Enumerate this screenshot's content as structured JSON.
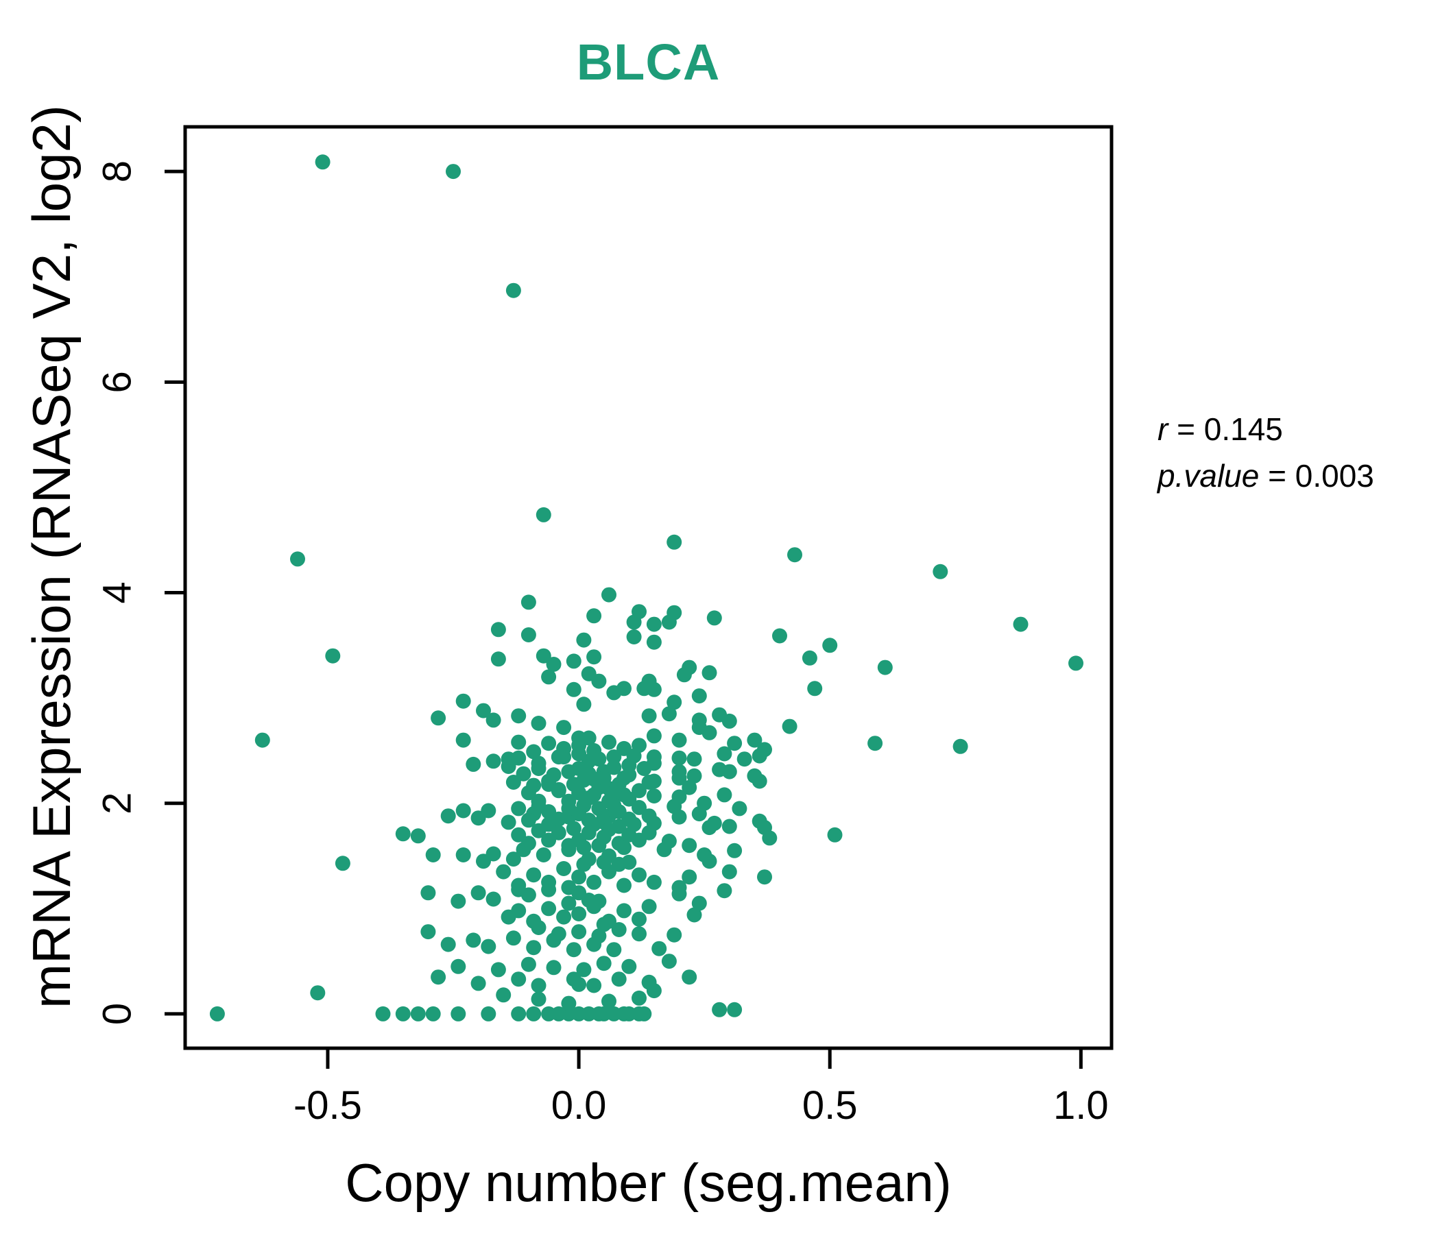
{
  "title": "BLCA",
  "title_color": "#1E9C78",
  "axes": {
    "x_label": "Copy number (seg.mean)",
    "y_label": "mRNA Expression (RNASeq V2, log2)",
    "x_ticks": [
      {
        "value": -0.5,
        "label": "-0.5"
      },
      {
        "value": 0.0,
        "label": "0.0"
      },
      {
        "value": 0.5,
        "label": "0.5"
      },
      {
        "value": 1.0,
        "label": "1.0"
      }
    ],
    "y_ticks": [
      {
        "value": 0,
        "label": "0"
      },
      {
        "value": 2,
        "label": "2"
      },
      {
        "value": 4,
        "label": "4"
      },
      {
        "value": 6,
        "label": "6"
      },
      {
        "value": 8,
        "label": "8"
      }
    ]
  },
  "annotation": {
    "r_var": "r",
    "r_eq": " = 0.145",
    "r_text": "r = 0.145",
    "p_var": "p.value",
    "p_eq": " = 0.003",
    "p_text": "p.value = 0.003"
  },
  "chart_data": {
    "type": "scatter",
    "title": "BLCA",
    "xlabel": "Copy number (seg.mean)",
    "ylabel": "mRNA Expression (RNASeq V2, log2)",
    "xlim": [
      -0.784,
      1.061
    ],
    "ylim": [
      -0.326,
      8.424
    ],
    "x_tick_values": [
      -0.5,
      0.0,
      0.5,
      1.0
    ],
    "y_tick_values": [
      0,
      2,
      4,
      6,
      8
    ],
    "grid": false,
    "legend": "none",
    "point_color": "#1E9C78",
    "point_radius_px": 11,
    "stats": {
      "r": 0.145,
      "p_value": 0.003
    },
    "points": [
      [
        -0.51,
        8.09
      ],
      [
        -0.25,
        8.0
      ],
      [
        -0.13,
        6.87
      ],
      [
        -0.07,
        4.74
      ],
      [
        -0.56,
        4.32
      ],
      [
        0.19,
        4.48
      ],
      [
        0.43,
        4.36
      ],
      [
        0.72,
        4.2
      ],
      [
        0.88,
        3.7
      ],
      [
        0.99,
        3.33
      ],
      [
        0.61,
        3.29
      ],
      [
        0.59,
        2.57
      ],
      [
        0.76,
        2.54
      ],
      [
        0.51,
        1.7
      ],
      [
        -0.63,
        2.6
      ],
      [
        -0.49,
        3.4
      ],
      [
        -0.47,
        1.43
      ],
      [
        -0.52,
        0.2
      ],
      [
        -0.72,
        0.0
      ],
      [
        0.06,
        3.98
      ],
      [
        -0.1,
        3.91
      ],
      [
        0.03,
        3.78
      ],
      [
        0.12,
        3.82
      ],
      [
        -0.16,
        3.65
      ],
      [
        -0.1,
        3.6
      ],
      [
        0.01,
        3.55
      ],
      [
        0.11,
        3.58
      ],
      [
        0.11,
        3.72
      ],
      [
        -0.07,
        3.4
      ],
      [
        0.03,
        3.39
      ],
      [
        -0.16,
        3.37
      ],
      [
        -0.05,
        3.32
      ],
      [
        -0.01,
        3.35
      ],
      [
        -0.06,
        3.2
      ],
      [
        0.02,
        3.23
      ],
      [
        0.04,
        3.16
      ],
      [
        0.07,
        3.05
      ],
      [
        -0.01,
        3.08
      ],
      [
        0.01,
        2.94
      ],
      [
        0.09,
        3.09
      ],
      [
        0.13,
        3.09
      ],
      [
        -0.23,
        2.97
      ],
      [
        -0.19,
        2.88
      ],
      [
        -0.17,
        2.79
      ],
      [
        -0.28,
        2.81
      ],
      [
        -0.12,
        2.83
      ],
      [
        -0.08,
        2.76
      ],
      [
        -0.03,
        2.72
      ],
      [
        0.0,
        2.62
      ],
      [
        -0.23,
        2.6
      ],
      [
        0.14,
        3.16
      ],
      [
        0.14,
        2.83
      ],
      [
        0.19,
        3.81
      ],
      [
        0.18,
        3.72
      ],
      [
        0.15,
        3.7
      ],
      [
        0.27,
        3.76
      ],
      [
        0.4,
        3.59
      ],
      [
        0.5,
        3.5
      ],
      [
        0.15,
        3.53
      ],
      [
        0.46,
        3.38
      ],
      [
        0.22,
        3.29
      ],
      [
        0.26,
        3.24
      ],
      [
        0.21,
        3.22
      ],
      [
        0.47,
        3.09
      ],
      [
        0.15,
        3.08
      ],
      [
        0.19,
        2.96
      ],
      [
        0.24,
        3.02
      ],
      [
        0.28,
        2.84
      ],
      [
        0.24,
        2.79
      ],
      [
        0.26,
        2.67
      ],
      [
        0.15,
        2.64
      ],
      [
        0.31,
        2.57
      ],
      [
        0.42,
        2.73
      ],
      [
        0.37,
        2.51
      ],
      [
        -0.21,
        2.37
      ],
      [
        -0.17,
        2.4
      ],
      [
        -0.14,
        2.42
      ],
      [
        -0.12,
        2.43
      ],
      [
        -0.08,
        2.38
      ],
      [
        -0.04,
        2.44
      ],
      [
        0.0,
        2.47
      ],
      [
        0.02,
        2.4
      ],
      [
        0.07,
        2.44
      ],
      [
        0.1,
        2.36
      ],
      [
        -0.09,
        2.17
      ],
      [
        -0.06,
        2.21
      ],
      [
        -0.04,
        2.13
      ],
      [
        0.03,
        2.23
      ],
      [
        0.06,
        2.14
      ],
      [
        0.09,
        2.08
      ],
      [
        -0.26,
        1.88
      ],
      [
        -0.23,
        1.93
      ],
      [
        -0.2,
        1.86
      ],
      [
        -0.18,
        1.93
      ],
      [
        -0.09,
        1.9
      ],
      [
        -0.06,
        1.8
      ],
      [
        -0.02,
        1.87
      ],
      [
        0.05,
        1.87
      ],
      [
        0.08,
        1.78
      ],
      [
        -0.35,
        1.71
      ],
      [
        -0.32,
        1.69
      ],
      [
        -0.29,
        1.51
      ],
      [
        -0.23,
        1.51
      ],
      [
        -0.19,
        1.45
      ],
      [
        -0.17,
        1.52
      ],
      [
        -0.13,
        1.47
      ],
      [
        -0.11,
        1.56
      ],
      [
        -0.07,
        1.51
      ],
      [
        -0.02,
        1.56
      ],
      [
        0.02,
        1.47
      ],
      [
        0.06,
        1.5
      ],
      [
        0.1,
        1.44
      ],
      [
        -0.3,
        1.15
      ],
      [
        -0.24,
        1.07
      ],
      [
        -0.2,
        1.15
      ],
      [
        -0.17,
        1.09
      ],
      [
        -0.12,
        1.18
      ],
      [
        -0.1,
        1.13
      ],
      [
        -0.06,
        1.18
      ],
      [
        0.0,
        1.15
      ],
      [
        0.04,
        1.07
      ],
      [
        -0.3,
        0.78
      ],
      [
        -0.26,
        0.66
      ],
      [
        -0.21,
        0.7
      ],
      [
        -0.18,
        0.64
      ],
      [
        -0.13,
        0.72
      ],
      [
        -0.09,
        0.63
      ],
      [
        -0.05,
        0.7
      ],
      [
        -0.01,
        0.61
      ],
      [
        0.03,
        0.66
      ],
      [
        0.07,
        0.61
      ],
      [
        -0.28,
        0.35
      ],
      [
        -0.2,
        0.29
      ],
      [
        -0.12,
        0.33
      ],
      [
        -0.08,
        0.27
      ],
      [
        -0.01,
        0.33
      ],
      [
        0.03,
        0.27
      ],
      [
        0.08,
        0.33
      ],
      [
        0.15,
        2.44
      ],
      [
        0.2,
        2.43
      ],
      [
        0.23,
        2.42
      ],
      [
        0.29,
        2.47
      ],
      [
        0.36,
        2.45
      ],
      [
        0.2,
        2.24
      ],
      [
        0.23,
        2.26
      ],
      [
        0.15,
        2.21
      ],
      [
        0.35,
        2.26
      ],
      [
        0.36,
        2.21
      ],
      [
        0.15,
        2.07
      ],
      [
        0.2,
        2.06
      ],
      [
        0.29,
        2.08
      ],
      [
        0.19,
        1.97
      ],
      [
        0.2,
        1.87
      ],
      [
        0.24,
        1.9
      ],
      [
        0.15,
        1.81
      ],
      [
        0.27,
        1.81
      ],
      [
        0.26,
        1.77
      ],
      [
        0.3,
        1.78
      ],
      [
        0.36,
        1.83
      ],
      [
        0.37,
        1.77
      ],
      [
        0.18,
        1.64
      ],
      [
        0.17,
        1.56
      ],
      [
        0.25,
        1.51
      ],
      [
        0.38,
        1.67
      ],
      [
        0.22,
        1.3
      ],
      [
        0.3,
        1.35
      ],
      [
        0.37,
        1.3
      ],
      [
        0.2,
        1.14
      ],
      [
        0.29,
        1.17
      ],
      [
        0.23,
        0.94
      ],
      [
        0.28,
        0.04
      ],
      [
        0.31,
        0.04
      ],
      [
        -0.39,
        0
      ],
      [
        -0.35,
        0
      ],
      [
        -0.32,
        0
      ],
      [
        -0.29,
        0
      ],
      [
        -0.24,
        0
      ],
      [
        -0.18,
        0
      ],
      [
        -0.12,
        0
      ],
      [
        -0.09,
        0
      ],
      [
        -0.06,
        0
      ],
      [
        -0.04,
        0
      ],
      [
        -0.02,
        0
      ],
      [
        0.0,
        0
      ],
      [
        0.02,
        0
      ],
      [
        0.04,
        0
      ],
      [
        0.05,
        0
      ],
      [
        0.07,
        0
      ],
      [
        0.09,
        0
      ],
      [
        0.1,
        0
      ],
      [
        0.12,
        0
      ],
      [
        0.13,
        0
      ],
      [
        -0.24,
        0.45
      ],
      [
        -0.16,
        0.42
      ],
      [
        -0.1,
        0.47
      ],
      [
        -0.05,
        0.44
      ],
      [
        0.01,
        0.42
      ],
      [
        0.05,
        0.48
      ],
      [
        0.1,
        0.45
      ],
      [
        0.14,
        0.3
      ],
      [
        0.12,
        0.15
      ],
      [
        0.06,
        0.12
      ],
      [
        -0.02,
        0.1
      ],
      [
        -0.08,
        0.14
      ],
      [
        0.0,
        0.28
      ],
      [
        -0.15,
        0.18
      ],
      [
        0.16,
        0.62
      ],
      [
        0.19,
        0.75
      ],
      [
        0.0,
        2.55
      ],
      [
        0.03,
        2.5
      ],
      [
        0.06,
        2.58
      ],
      [
        0.09,
        2.52
      ],
      [
        -0.03,
        2.52
      ],
      [
        -0.06,
        2.57
      ],
      [
        0.12,
        2.55
      ],
      [
        -0.09,
        2.49
      ],
      [
        0.02,
        2.62
      ],
      [
        -0.12,
        2.58
      ],
      [
        0.0,
        2.33
      ],
      [
        0.02,
        2.28
      ],
      [
        0.05,
        2.3
      ],
      [
        0.07,
        2.34
      ],
      [
        0.1,
        2.27
      ],
      [
        0.13,
        2.33
      ],
      [
        -0.02,
        2.3
      ],
      [
        -0.05,
        2.27
      ],
      [
        -0.08,
        2.33
      ],
      [
        -0.11,
        2.28
      ],
      [
        0.04,
        2.42
      ],
      [
        -0.03,
        2.44
      ],
      [
        0.11,
        2.45
      ],
      [
        0.15,
        2.38
      ],
      [
        -0.14,
        2.35
      ],
      [
        0.0,
        2.1
      ],
      [
        0.02,
        2.05
      ],
      [
        0.04,
        2.15
      ],
      [
        0.06,
        2.02
      ],
      [
        0.08,
        2.18
      ],
      [
        0.1,
        2.04
      ],
      [
        0.12,
        2.12
      ],
      [
        0.14,
        2.2
      ],
      [
        -0.02,
        2.02
      ],
      [
        -0.04,
        2.12
      ],
      [
        -0.06,
        2.18
      ],
      [
        -0.08,
        2.02
      ],
      [
        -0.1,
        2.1
      ],
      [
        -0.13,
        2.2
      ],
      [
        0.01,
        2.22
      ],
      [
        0.05,
        2.24
      ],
      [
        -0.01,
        2.18
      ],
      [
        0.03,
        2.08
      ],
      [
        0.07,
        2.1
      ],
      [
        0.09,
        2.24
      ],
      [
        0.0,
        1.9
      ],
      [
        0.02,
        1.84
      ],
      [
        0.04,
        1.95
      ],
      [
        0.06,
        1.88
      ],
      [
        0.08,
        1.92
      ],
      [
        0.1,
        1.85
      ],
      [
        0.12,
        1.96
      ],
      [
        -0.02,
        1.95
      ],
      [
        -0.04,
        1.85
      ],
      [
        -0.06,
        1.92
      ],
      [
        -0.08,
        1.97
      ],
      [
        -0.1,
        1.84
      ],
      [
        -0.12,
        1.95
      ],
      [
        0.14,
        1.88
      ],
      [
        0.01,
        1.98
      ],
      [
        0.03,
        1.8
      ],
      [
        -0.14,
        1.82
      ],
      [
        0.05,
        1.82
      ],
      [
        0.07,
        1.98
      ],
      [
        0.11,
        1.8
      ],
      [
        0.0,
        1.65
      ],
      [
        0.02,
        1.72
      ],
      [
        0.04,
        1.6
      ],
      [
        0.06,
        1.75
      ],
      [
        0.08,
        1.62
      ],
      [
        0.1,
        1.7
      ],
      [
        0.12,
        1.65
      ],
      [
        -0.02,
        1.6
      ],
      [
        -0.04,
        1.72
      ],
      [
        -0.06,
        1.65
      ],
      [
        -0.08,
        1.74
      ],
      [
        -0.1,
        1.62
      ],
      [
        0.14,
        1.72
      ],
      [
        0.01,
        1.58
      ],
      [
        -0.12,
        1.7
      ],
      [
        0.05,
        1.68
      ],
      [
        -0.01,
        1.76
      ],
      [
        0.09,
        1.58
      ],
      [
        0.0,
        1.3
      ],
      [
        0.03,
        1.25
      ],
      [
        0.06,
        1.35
      ],
      [
        0.09,
        1.22
      ],
      [
        0.12,
        1.32
      ],
      [
        -0.03,
        1.38
      ],
      [
        -0.06,
        1.25
      ],
      [
        -0.09,
        1.32
      ],
      [
        -0.12,
        1.22
      ],
      [
        0.01,
        1.42
      ],
      [
        0.05,
        1.44
      ],
      [
        -0.02,
        1.2
      ],
      [
        0.08,
        1.42
      ],
      [
        0.15,
        1.25
      ],
      [
        -0.15,
        1.35
      ],
      [
        0.0,
        0.95
      ],
      [
        0.03,
        1.02
      ],
      [
        0.06,
        0.88
      ],
      [
        0.09,
        0.98
      ],
      [
        0.12,
        0.9
      ],
      [
        -0.03,
        0.92
      ],
      [
        -0.06,
        1.0
      ],
      [
        -0.09,
        0.88
      ],
      [
        -0.12,
        0.98
      ],
      [
        0.02,
        1.08
      ],
      [
        -0.02,
        1.05
      ],
      [
        0.14,
        1.02
      ],
      [
        0.05,
        0.85
      ],
      [
        -0.14,
        0.92
      ],
      [
        0.0,
        0.78
      ],
      [
        0.04,
        0.74
      ],
      [
        0.08,
        0.8
      ],
      [
        -0.04,
        0.76
      ],
      [
        -0.08,
        0.82
      ],
      [
        0.12,
        0.76
      ],
      [
        0.2,
        2.3
      ],
      [
        0.22,
        2.15
      ],
      [
        0.25,
        2.0
      ],
      [
        0.3,
        2.3
      ],
      [
        0.32,
        1.95
      ],
      [
        0.22,
        1.6
      ],
      [
        0.26,
        1.45
      ],
      [
        0.31,
        1.55
      ],
      [
        0.2,
        1.2
      ],
      [
        0.24,
        1.05
      ],
      [
        0.33,
        2.42
      ],
      [
        0.28,
        2.32
      ],
      [
        0.18,
        0.5
      ],
      [
        0.22,
        0.35
      ],
      [
        0.15,
        0.22
      ],
      [
        0.2,
        2.6
      ],
      [
        0.24,
        2.72
      ],
      [
        0.3,
        2.78
      ],
      [
        0.35,
        2.6
      ],
      [
        0.18,
        2.85
      ]
    ]
  }
}
